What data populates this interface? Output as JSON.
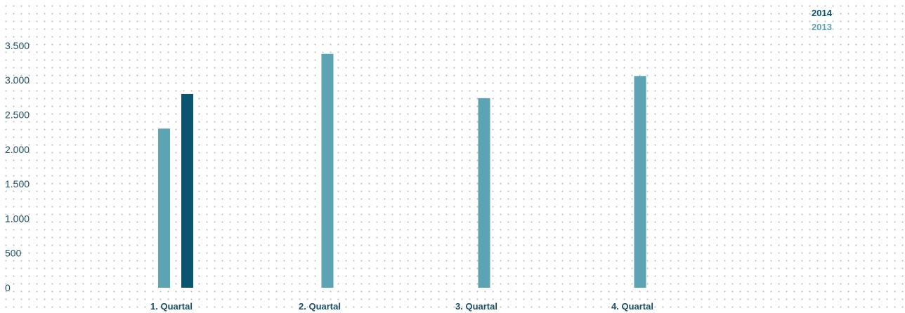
{
  "colors": {
    "series_2014": "#0b5470",
    "series_2013": "#5ca3b3",
    "axis_text": "#1b4f66",
    "grid_dots": "#bdbdbd"
  },
  "chart_data": {
    "type": "bar",
    "title": "",
    "xlabel": "",
    "ylabel": "",
    "categories": [
      "1. Quartal",
      "2. Quartal",
      "3. Quartal",
      "4. Quartal"
    ],
    "series": [
      {
        "name": "2013",
        "values": [
          2300,
          3380,
          2740,
          3060
        ]
      },
      {
        "name": "2014",
        "values": [
          2800,
          null,
          null,
          null
        ]
      }
    ],
    "ylim": [
      0,
      3500
    ],
    "yticks": [
      0,
      500,
      1000,
      1500,
      2000,
      2500,
      3000,
      3500
    ],
    "ytick_labels": [
      "0",
      "500",
      "1.000",
      "1.500",
      "2.000",
      "2.500",
      "3.000",
      "3.500"
    ],
    "grid": "dotted",
    "legend": {
      "position": "top-right",
      "entries": [
        "2014",
        "2013"
      ]
    }
  }
}
